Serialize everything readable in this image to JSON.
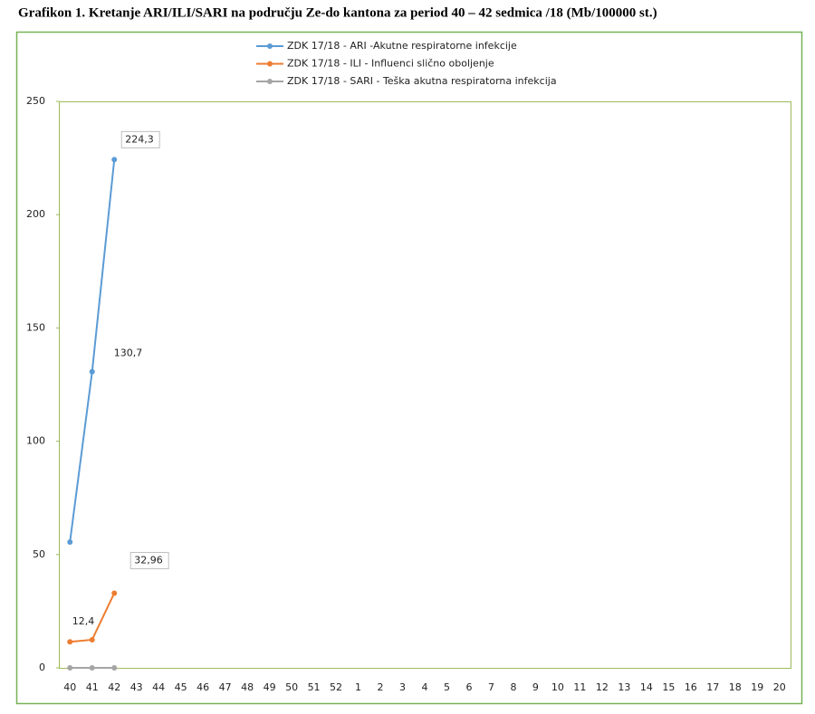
{
  "chart_data": {
    "type": "line",
    "title": "Grafikon 1. Kretanje ARI/ILI/SARI na području Ze-do kantona za period 40 – 42 sedmica /18  (Mb/100000 st.)",
    "categories": [
      "40",
      "41",
      "42",
      "43",
      "44",
      "45",
      "46",
      "47",
      "48",
      "49",
      "50",
      "51",
      "52",
      "1",
      "2",
      "3",
      "4",
      "5",
      "6",
      "7",
      "8",
      "9",
      "10",
      "11",
      "12",
      "13",
      "14",
      "15",
      "16",
      "17",
      "18",
      "19",
      "20"
    ],
    "series": [
      {
        "name": "ZDK 17/18 - ARI -Akutne respiratorne infekcije",
        "color": "#5b9bd5",
        "values": [
          55.5,
          130.7,
          224.3,
          null,
          null,
          null,
          null,
          null,
          null,
          null,
          null,
          null,
          null,
          null,
          null,
          null,
          null,
          null,
          null,
          null,
          null,
          null,
          null,
          null,
          null,
          null,
          null,
          null,
          null,
          null,
          null,
          null,
          null
        ],
        "value_labels": [
          null,
          "130,7",
          "224,3",
          null,
          null,
          null,
          null,
          null,
          null,
          null,
          null,
          null,
          null,
          null,
          null,
          null,
          null,
          null,
          null,
          null,
          null,
          null,
          null,
          null,
          null,
          null,
          null,
          null,
          null,
          null,
          null,
          null,
          null
        ]
      },
      {
        "name": "ZDK 17/18 - ILI - Influenci slično oboljenje",
        "color": "#ed7d31",
        "values": [
          11.5,
          12.4,
          32.96,
          null,
          null,
          null,
          null,
          null,
          null,
          null,
          null,
          null,
          null,
          null,
          null,
          null,
          null,
          null,
          null,
          null,
          null,
          null,
          null,
          null,
          null,
          null,
          null,
          null,
          null,
          null,
          null,
          null,
          null
        ],
        "value_labels": [
          null,
          "12,4",
          "32,96",
          null,
          null,
          null,
          null,
          null,
          null,
          null,
          null,
          null,
          null,
          null,
          null,
          null,
          null,
          null,
          null,
          null,
          null,
          null,
          null,
          null,
          null,
          null,
          null,
          null,
          null,
          null,
          null,
          null,
          null
        ]
      },
      {
        "name": "ZDK 17/18 - SARI - Teška akutna respiratorna infekcija",
        "color": "#a5a5a5",
        "values": [
          0,
          0,
          0,
          null,
          null,
          null,
          null,
          null,
          null,
          null,
          null,
          null,
          null,
          null,
          null,
          null,
          null,
          null,
          null,
          null,
          null,
          null,
          null,
          null,
          null,
          null,
          null,
          null,
          null,
          null,
          null,
          null,
          null
        ]
      }
    ],
    "ylim": [
      0,
      250
    ],
    "yticks": [
      0,
      50,
      100,
      150,
      200,
      250
    ],
    "legend": "top"
  }
}
